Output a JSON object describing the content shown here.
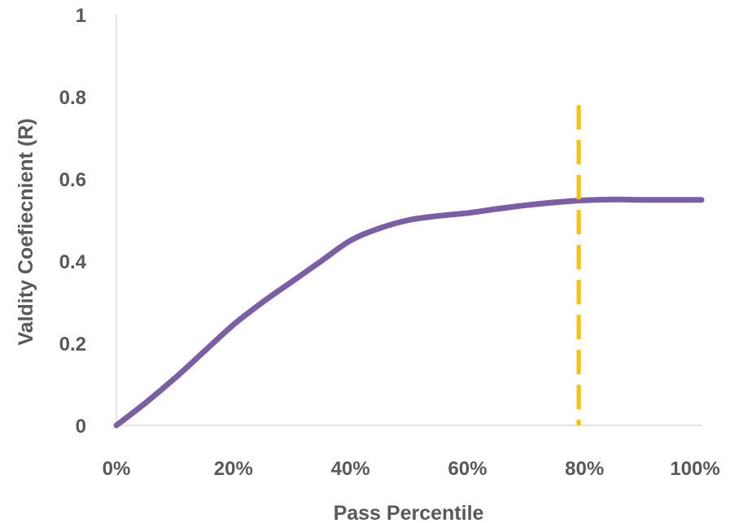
{
  "chart_data": {
    "type": "line",
    "xlabel": "Pass Percentile",
    "ylabel": "Valdity Coefiecnient (R)",
    "xlim": [
      0,
      100
    ],
    "ylim": [
      0,
      1
    ],
    "x_ticks": [
      {
        "value": 0,
        "label": "0%"
      },
      {
        "value": 20,
        "label": "20%"
      },
      {
        "value": 40,
        "label": "40%"
      },
      {
        "value": 60,
        "label": "60%"
      },
      {
        "value": 80,
        "label": "80%"
      },
      {
        "value": 100,
        "label": "100%"
      }
    ],
    "y_ticks": [
      {
        "value": 0,
        "label": "0"
      },
      {
        "value": 0.2,
        "label": "0.2"
      },
      {
        "value": 0.4,
        "label": "0.4"
      },
      {
        "value": 0.6,
        "label": "0.6"
      },
      {
        "value": 0.8,
        "label": "0.8"
      },
      {
        "value": 1,
        "label": "1"
      }
    ],
    "grid": false,
    "series": [
      {
        "color": "#7b5fa6",
        "x": [
          0,
          5,
          10,
          15,
          20,
          25,
          30,
          35,
          40,
          45,
          50,
          55,
          60,
          65,
          70,
          75,
          80,
          85,
          90,
          95,
          100
        ],
        "y": [
          0,
          0.055,
          0.115,
          0.18,
          0.245,
          0.3,
          0.35,
          0.4,
          0.45,
          0.48,
          0.5,
          0.51,
          0.517,
          0.527,
          0.536,
          0.543,
          0.548,
          0.55,
          0.549,
          0.549,
          0.549
        ]
      }
    ],
    "reference_line": {
      "orientation": "vertical",
      "x": 79,
      "y_range": [
        0,
        0.78
      ],
      "color": "#ffc000",
      "style": "dashed"
    }
  }
}
